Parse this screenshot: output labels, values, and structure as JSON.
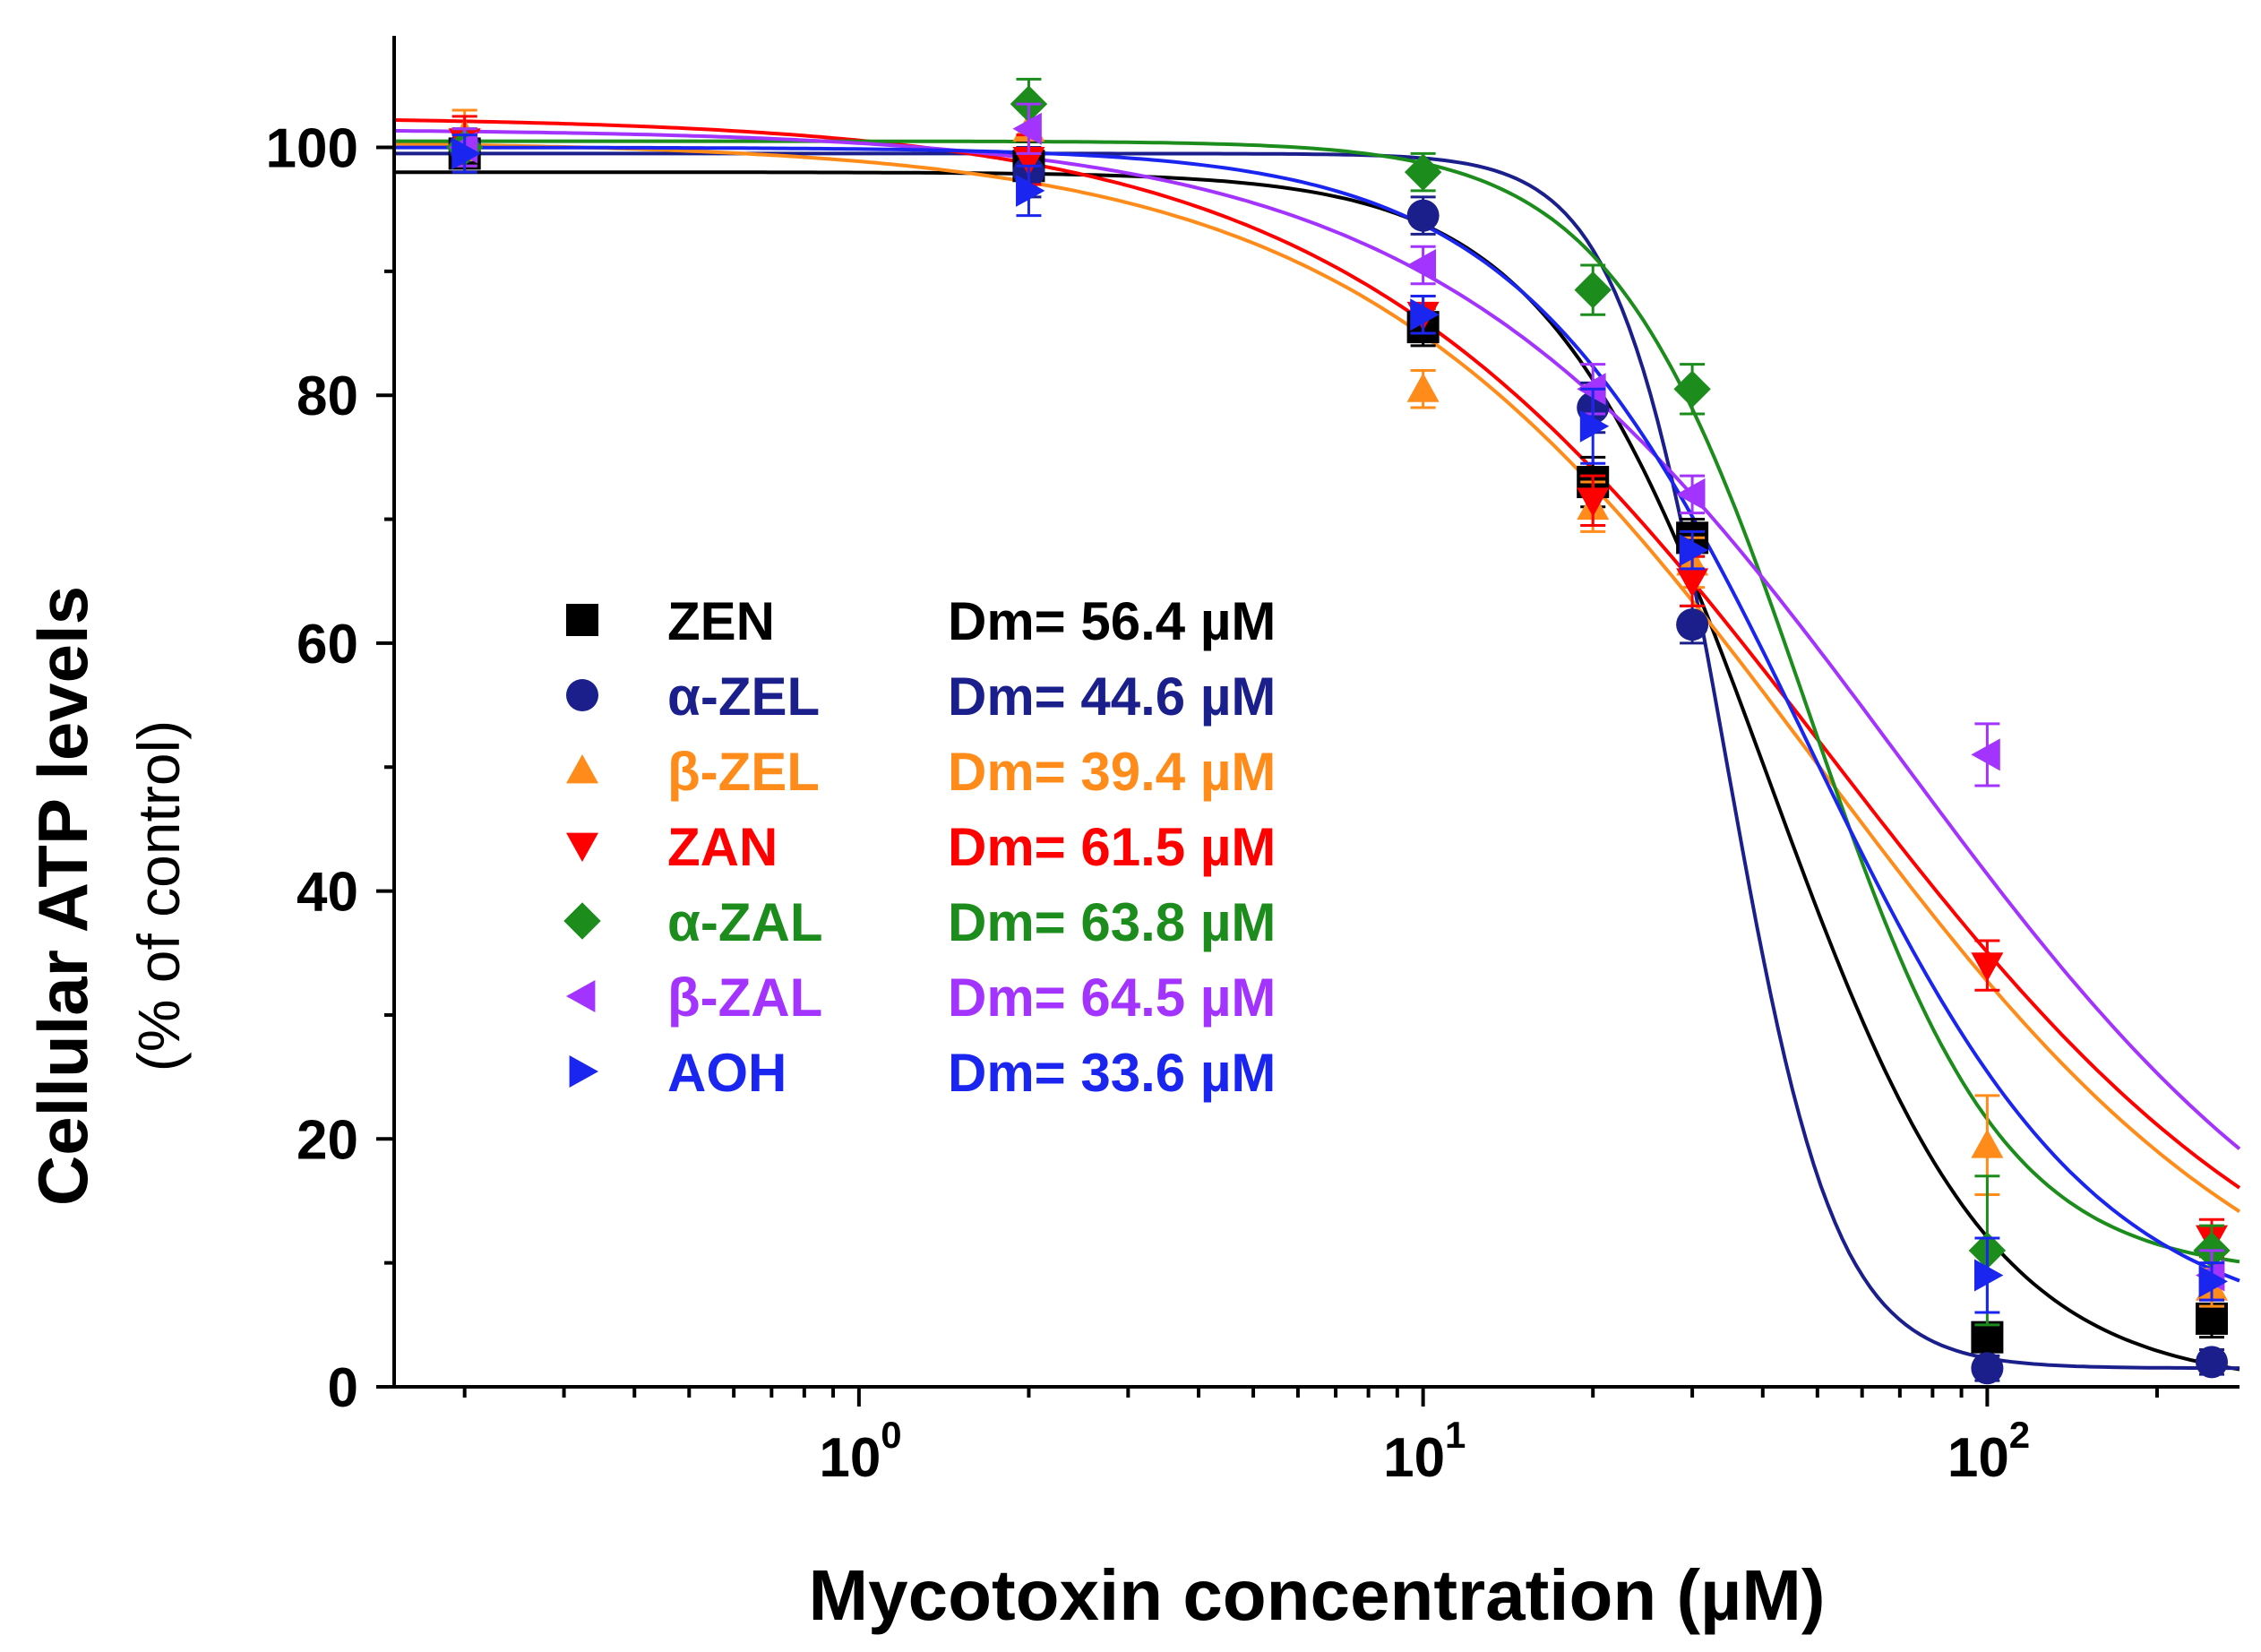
{
  "chart_data": {
    "type": "scatter",
    "title": "",
    "xlabel": "Mycotoxin concentration (µM)",
    "ylabel": "Cellular ATP levels",
    "ylabel_sub": "(% of control)",
    "xscale": "log",
    "xlim": [
      0.15,
      280
    ],
    "ylim": [
      0,
      109
    ],
    "xticks": [
      {
        "value": 1,
        "base": "10",
        "exp": "0"
      },
      {
        "value": 10,
        "base": "10",
        "exp": "1"
      },
      {
        "value": 100,
        "base": "10",
        "exp": "2"
      }
    ],
    "yticks": [
      0,
      20,
      40,
      60,
      80,
      100
    ],
    "legend_position": "center-left",
    "series": [
      {
        "name": "ZEN",
        "dm": "Dm= 56.4 µM",
        "color": "#000000",
        "label_color": "#000000",
        "marker": "square",
        "x": [
          0.2,
          2,
          10,
          20,
          30,
          100,
          250
        ],
        "y": [
          99.5,
          98.5,
          85.5,
          73,
          68.5,
          4,
          5.5
        ],
        "err": [
          1.5,
          2,
          1.5,
          2,
          1.5,
          1,
          1.5
        ],
        "fit": {
          "top": 98,
          "bottom": 0,
          "ic50": 41,
          "hill": 2.2
        }
      },
      {
        "name": "α-ZEL",
        "dm": "Dm= 44.6 µM",
        "color": "#1a1f8c",
        "label_color": "#1a1f8c",
        "marker": "circle",
        "x": [
          0.2,
          2,
          10,
          20,
          30,
          100,
          250
        ],
        "y": [
          100,
          98,
          94.5,
          79,
          61.5,
          1.5,
          2
        ],
        "err": [
          1.5,
          2,
          1.5,
          2,
          1.5,
          1,
          1
        ],
        "fit": {
          "top": 99.5,
          "bottom": 1.5,
          "ic50": 34.5,
          "hill": 4.5
        }
      },
      {
        "name": "β-ZEL",
        "dm": "Dm= 39.4 µM",
        "color": "#ff8c1a",
        "label_color": "#ff8c1a",
        "marker": "triangle-up",
        "x": [
          0.2,
          2,
          10,
          20,
          30,
          100,
          250
        ],
        "y": [
          101,
          101.5,
          80.5,
          71,
          66.5,
          19.5,
          8
        ],
        "err": [
          2,
          2,
          1.5,
          2,
          2,
          4,
          1.5
        ],
        "fit": {
          "top": 100.5,
          "bottom": 0,
          "ic50": 50,
          "hill": 1.05
        }
      },
      {
        "name": "ZAN",
        "dm": "Dm= 61.5 µM",
        "color": "#ff0000",
        "label_color": "#ff0000",
        "marker": "triangle-down",
        "x": [
          0.2,
          2,
          10,
          20,
          30,
          100,
          250
        ],
        "y": [
          100.5,
          99,
          86.5,
          71.5,
          65,
          34,
          12
        ],
        "err": [
          2,
          2,
          1.5,
          2,
          2,
          2,
          1.5
        ],
        "fit": {
          "top": 102.5,
          "bottom": 0,
          "ic50": 52,
          "hill": 1.0
        }
      },
      {
        "name": "α-ZAL",
        "dm": "Dm= 63.8 µM",
        "color": "#1c8c1c",
        "label_color": "#1c8c1c",
        "marker": "diamond",
        "x": [
          0.2,
          2,
          10,
          20,
          30,
          100,
          250
        ],
        "y": [
          100,
          103.5,
          98,
          88.5,
          80.5,
          11,
          11
        ],
        "err": [
          1.5,
          2,
          1.5,
          2,
          2,
          6,
          2
        ],
        "fit": {
          "top": 100.5,
          "bottom": 9,
          "ic50": 48,
          "hill": 2.5
        }
      },
      {
        "name": "β-ZAL",
        "dm": "Dm= 64.5 µM",
        "color": "#a333ff",
        "label_color": "#a333ff",
        "marker": "triangle-left",
        "x": [
          0.2,
          2,
          10,
          20,
          30,
          100,
          250
        ],
        "y": [
          100,
          101.5,
          90.5,
          80.5,
          72,
          51,
          9
        ],
        "err": [
          1.5,
          2,
          1.5,
          2,
          1.5,
          2.5,
          2
        ],
        "fit": {
          "top": 101.5,
          "bottom": 0,
          "ic50": 70,
          "hill": 1.05
        }
      },
      {
        "name": "AOH",
        "dm": "Dm= 33.6 µM",
        "color": "#1a26f0",
        "label_color": "#1a26f0",
        "marker": "triangle-right",
        "x": [
          0.2,
          2,
          10,
          20,
          30,
          100,
          250
        ],
        "y": [
          99.5,
          96.5,
          86.5,
          77.5,
          67.5,
          9,
          8.5
        ],
        "err": [
          1.5,
          2,
          1.5,
          3,
          1.5,
          3,
          1.5
        ],
        "fit": {
          "top": 100,
          "bottom": 4,
          "ic50": 48,
          "hill": 1.7
        }
      }
    ]
  }
}
